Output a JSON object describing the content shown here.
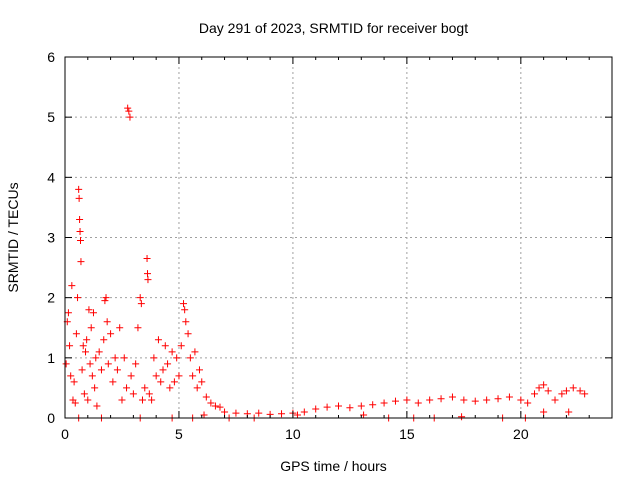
{
  "chart_data": {
    "type": "scatter",
    "title": "Day 291 of 2023, SRMTID for receiver bogt",
    "xlabel": "GPS time / hours",
    "ylabel": "SRMTID / TECUs",
    "xlim": [
      0,
      24
    ],
    "ylim": [
      0,
      6
    ],
    "xticks": [
      0,
      5,
      10,
      15,
      20
    ],
    "yticks": [
      0,
      1,
      2,
      3,
      4,
      5,
      6
    ],
    "xtick_labels": [
      "0",
      "5",
      "10",
      "15",
      "20"
    ],
    "ytick_labels": [
      "0",
      "1",
      "2",
      "3",
      "4",
      "5",
      "6"
    ],
    "grid": true,
    "marker": "+",
    "color": "#ff0000",
    "series": [
      {
        "name": "SRMTID",
        "points": [
          [
            0.05,
            0.9
          ],
          [
            0.1,
            1.6
          ],
          [
            0.15,
            1.75
          ],
          [
            0.2,
            1.2
          ],
          [
            0.25,
            0.7
          ],
          [
            0.3,
            2.2
          ],
          [
            0.35,
            0.3
          ],
          [
            0.4,
            0.6
          ],
          [
            0.45,
            0.25
          ],
          [
            0.5,
            1.4
          ],
          [
            0.55,
            2.0
          ],
          [
            0.6,
            3.8
          ],
          [
            0.62,
            3.65
          ],
          [
            0.64,
            3.3
          ],
          [
            0.66,
            3.1
          ],
          [
            0.68,
            2.95
          ],
          [
            0.7,
            2.6
          ],
          [
            0.75,
            0.8
          ],
          [
            0.8,
            1.2
          ],
          [
            0.85,
            0.4
          ],
          [
            0.9,
            1.1
          ],
          [
            0.95,
            1.3
          ],
          [
            1.0,
            0.3
          ],
          [
            1.05,
            1.8
          ],
          [
            1.1,
            0.9
          ],
          [
            1.15,
            1.5
          ],
          [
            1.2,
            0.7
          ],
          [
            1.25,
            1.75
          ],
          [
            1.3,
            0.5
          ],
          [
            1.35,
            1.0
          ],
          [
            1.4,
            0.2
          ],
          [
            1.5,
            1.1
          ],
          [
            1.6,
            0.8
          ],
          [
            1.7,
            1.3
          ],
          [
            1.75,
            1.95
          ],
          [
            1.8,
            2.0
          ],
          [
            1.85,
            1.6
          ],
          [
            1.9,
            0.9
          ],
          [
            2.0,
            1.4
          ],
          [
            2.1,
            0.6
          ],
          [
            2.2,
            1.0
          ],
          [
            2.3,
            0.8
          ],
          [
            2.4,
            1.5
          ],
          [
            2.5,
            0.3
          ],
          [
            2.6,
            1.0
          ],
          [
            2.7,
            0.5
          ],
          [
            2.75,
            5.15
          ],
          [
            2.8,
            5.1
          ],
          [
            2.85,
            5.0
          ],
          [
            2.9,
            0.7
          ],
          [
            3.0,
            0.4
          ],
          [
            3.1,
            0.9
          ],
          [
            3.2,
            1.5
          ],
          [
            3.3,
            2.0
          ],
          [
            3.35,
            1.9
          ],
          [
            3.4,
            0.3
          ],
          [
            3.5,
            0.5
          ],
          [
            3.6,
            2.65
          ],
          [
            3.62,
            2.4
          ],
          [
            3.64,
            2.3
          ],
          [
            3.7,
            0.4
          ],
          [
            3.8,
            0.3
          ],
          [
            3.9,
            1.0
          ],
          [
            4.0,
            0.7
          ],
          [
            4.1,
            1.3
          ],
          [
            4.2,
            0.6
          ],
          [
            4.3,
            0.8
          ],
          [
            4.4,
            1.2
          ],
          [
            4.5,
            0.9
          ],
          [
            4.6,
            0.5
          ],
          [
            4.7,
            1.1
          ],
          [
            4.8,
            0.6
          ],
          [
            4.9,
            1.0
          ],
          [
            5.0,
            0.7
          ],
          [
            5.1,
            1.2
          ],
          [
            5.2,
            1.9
          ],
          [
            5.25,
            1.8
          ],
          [
            5.3,
            1.6
          ],
          [
            5.4,
            1.4
          ],
          [
            5.5,
            1.0
          ],
          [
            5.6,
            0.7
          ],
          [
            5.7,
            1.1
          ],
          [
            5.8,
            0.5
          ],
          [
            5.9,
            0.8
          ],
          [
            6.0,
            0.6
          ],
          [
            6.2,
            0.35
          ],
          [
            6.4,
            0.25
          ],
          [
            6.6,
            0.2
          ],
          [
            6.8,
            0.18
          ],
          [
            7.0,
            0.1
          ],
          [
            7.5,
            0.08
          ],
          [
            8.0,
            0.07
          ],
          [
            8.5,
            0.08
          ],
          [
            9.0,
            0.06
          ],
          [
            9.5,
            0.07
          ],
          [
            10.0,
            0.08
          ],
          [
            10.5,
            0.1
          ],
          [
            11.0,
            0.15
          ],
          [
            11.5,
            0.18
          ],
          [
            12.0,
            0.2
          ],
          [
            12.5,
            0.17
          ],
          [
            13.0,
            0.2
          ],
          [
            13.5,
            0.22
          ],
          [
            14.0,
            0.25
          ],
          [
            14.5,
            0.28
          ],
          [
            15.0,
            0.3
          ],
          [
            15.5,
            0.25
          ],
          [
            16.0,
            0.3
          ],
          [
            16.5,
            0.32
          ],
          [
            17.0,
            0.35
          ],
          [
            17.5,
            0.3
          ],
          [
            18.0,
            0.28
          ],
          [
            18.5,
            0.3
          ],
          [
            19.0,
            0.32
          ],
          [
            19.5,
            0.35
          ],
          [
            20.0,
            0.3
          ],
          [
            20.3,
            0.25
          ],
          [
            20.6,
            0.4
          ],
          [
            20.8,
            0.5
          ],
          [
            21.0,
            0.55
          ],
          [
            21.2,
            0.45
          ],
          [
            21.5,
            0.3
          ],
          [
            21.8,
            0.4
          ],
          [
            22.0,
            0.45
          ],
          [
            22.3,
            0.5
          ],
          [
            22.6,
            0.45
          ],
          [
            22.8,
            0.4
          ],
          [
            6.1,
            0.05
          ],
          [
            7.2,
            0.0
          ],
          [
            8.3,
            0.0
          ],
          [
            10.2,
            0.05
          ],
          [
            13.1,
            0.05
          ],
          [
            14.2,
            0.0
          ],
          [
            15.3,
            0.0
          ],
          [
            16.2,
            0.0
          ],
          [
            17.4,
            0.02
          ],
          [
            19.2,
            0.0
          ],
          [
            20.2,
            0.0
          ],
          [
            21.0,
            0.1
          ],
          [
            22.1,
            0.1
          ],
          [
            4.7,
            0.0
          ],
          [
            5.6,
            0.0
          ],
          [
            3.3,
            0.0
          ],
          [
            1.6,
            0.0
          ],
          [
            0.6,
            0.0
          ]
        ]
      }
    ]
  }
}
